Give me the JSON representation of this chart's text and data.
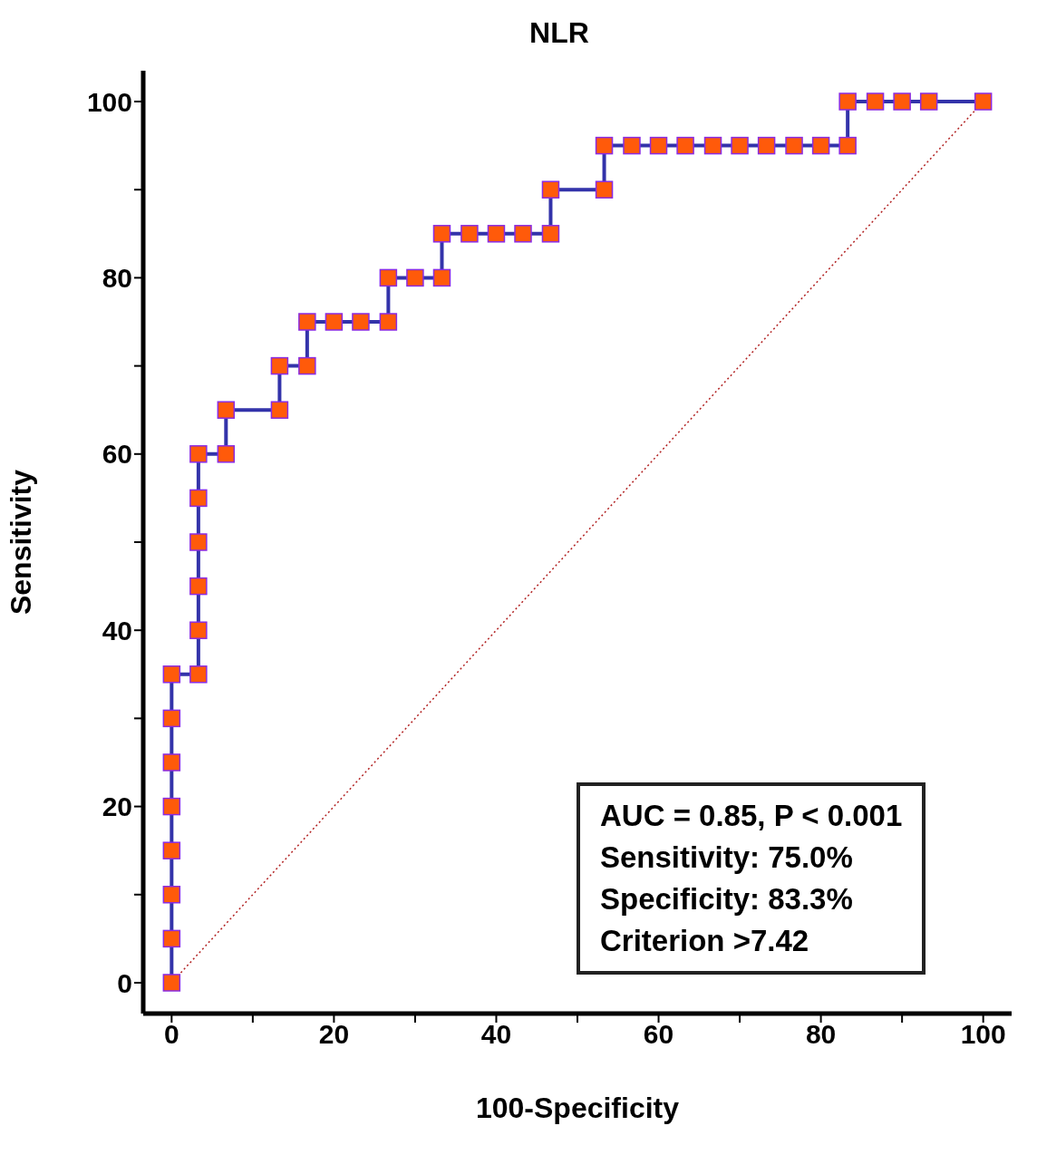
{
  "chart_data": {
    "type": "line",
    "title": "NLR",
    "xlabel": "100-Specificity",
    "ylabel": "Sensitivity",
    "xlim": [
      -3.5,
      103.5
    ],
    "ylim": [
      -3.5,
      103.5
    ],
    "xticks": [
      0,
      {
        "value": 10,
        "label": null
      },
      20,
      {
        "value": 30,
        "label": null
      },
      40,
      {
        "value": 50,
        "label": null
      },
      60,
      {
        "value": 70,
        "label": null
      },
      80,
      {
        "value": 90,
        "label": null
      },
      100
    ],
    "yticks": [
      0,
      {
        "value": 10,
        "label": null
      },
      20,
      {
        "value": 30,
        "label": null
      },
      40,
      {
        "value": 50,
        "label": null
      },
      60,
      {
        "value": 70,
        "label": null
      },
      80,
      {
        "value": 90,
        "label": null
      },
      100
    ],
    "series": [
      {
        "color": "#3333aa",
        "marker": "square",
        "line_style": "solid",
        "x": [
          0,
          0,
          0,
          0,
          0,
          0,
          0,
          0,
          3.3,
          3.3,
          3.3,
          3.3,
          3.3,
          3.3,
          6.7,
          6.7,
          13.3,
          13.3,
          16.7,
          16.7,
          20,
          23.3,
          26.7,
          26.7,
          30,
          33.3,
          33.3,
          36.7,
          40,
          43.3,
          46.7,
          46.7,
          53.3,
          53.3,
          56.7,
          60,
          63.3,
          66.7,
          70,
          73.3,
          76.7,
          80,
          83.3,
          83.3,
          86.7,
          90,
          93.3,
          100
        ],
        "values": [
          0,
          5,
          10,
          15,
          20,
          25,
          30,
          35,
          35,
          40,
          45,
          50,
          55,
          60,
          60,
          65,
          65,
          70,
          70,
          75,
          75,
          75,
          75,
          80,
          80,
          80,
          85,
          85,
          85,
          85,
          85,
          90,
          90,
          95,
          95,
          95,
          95,
          95,
          95,
          95,
          95,
          95,
          95,
          100,
          100,
          100,
          100,
          100
        ]
      },
      {
        "color": "#b22222",
        "marker": "none",
        "line_style": "dotted",
        "x": [
          0,
          100
        ],
        "values": [
          0,
          100
        ]
      }
    ],
    "annotations": [
      "AUC = 0.85, P < 0.001",
      "Sensitivity: 75.0%",
      "Specificity: 83.3%",
      "Criterion >7.42"
    ]
  }
}
